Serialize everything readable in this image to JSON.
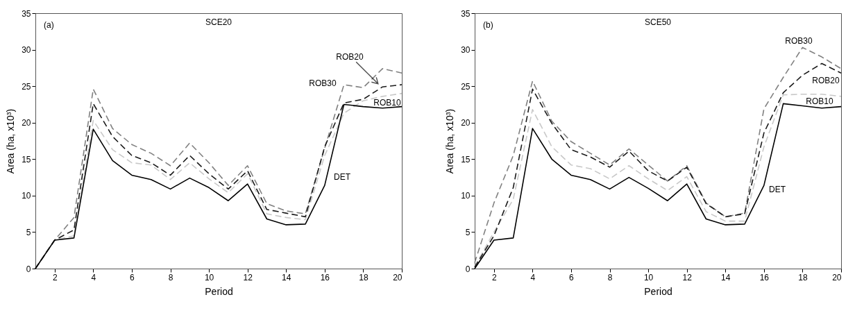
{
  "chart_data": [
    {
      "type": "line",
      "title": "SCE20",
      "xlabel": "Period",
      "ylabel": "Area (ha, x10³)",
      "xlim": [
        1,
        20
      ],
      "xticks": [
        2,
        4,
        6,
        8,
        10,
        12,
        14,
        16,
        18,
        20
      ],
      "ylim": [
        0,
        35
      ],
      "yticks": [
        0,
        5,
        10,
        15,
        20,
        25,
        30,
        35
      ],
      "grid": false,
      "marker": "none",
      "x": [
        1,
        2,
        3,
        4,
        5,
        6,
        7,
        8,
        9,
        10,
        11,
        12,
        13,
        14,
        15,
        16,
        17,
        18,
        19,
        20
      ],
      "series": [
        {
          "name": "ROB10",
          "color": "#c8c8c8",
          "line_style": "dashed",
          "values": [
            0,
            3.9,
            4.5,
            20.3,
            16.3,
            14.5,
            14.2,
            12.2,
            14.5,
            12.3,
            10.4,
            13.0,
            7.5,
            7.0,
            6.7,
            15.5,
            21.3,
            23.0,
            23.6,
            24.0
          ]
        },
        {
          "name": "ROB30",
          "color": "#808080",
          "line_style": "dashed",
          "values": [
            0,
            3.9,
            7.0,
            24.6,
            19.2,
            17.0,
            15.8,
            14.1,
            17.2,
            14.5,
            11.4,
            14.1,
            8.9,
            7.9,
            7.5,
            16.5,
            25.2,
            24.8,
            27.4,
            26.8
          ]
        },
        {
          "name": "ROB20",
          "color": "#1a1a1a",
          "line_style": "dashed",
          "values": [
            0,
            3.9,
            5.3,
            22.6,
            18.1,
            15.5,
            14.5,
            12.8,
            15.5,
            13.0,
            10.9,
            13.4,
            8.1,
            7.6,
            7.1,
            16.7,
            22.7,
            23.2,
            24.9,
            25.2
          ]
        },
        {
          "name": "DET",
          "color": "#000000",
          "line_style": "solid",
          "values": [
            0,
            3.9,
            4.2,
            19.1,
            14.8,
            12.8,
            12.2,
            10.9,
            12.4,
            11.1,
            9.3,
            11.6,
            6.8,
            6.0,
            6.1,
            11.4,
            22.5,
            22.2,
            22.0,
            22.2
          ]
        }
      ],
      "annotations": [
        "(a)"
      ]
    },
    {
      "type": "line",
      "title": "SCE50",
      "xlabel": "Period",
      "ylabel": "Area (ha, x10³)",
      "xlim": [
        1,
        20
      ],
      "xticks": [
        2,
        4,
        6,
        8,
        10,
        12,
        14,
        16,
        18,
        20
      ],
      "ylim": [
        0,
        35
      ],
      "yticks": [
        0,
        5,
        10,
        15,
        20,
        25,
        30,
        35
      ],
      "grid": false,
      "marker": "none",
      "x": [
        1,
        2,
        3,
        4,
        5,
        6,
        7,
        8,
        9,
        10,
        11,
        12,
        13,
        14,
        15,
        16,
        17,
        18,
        19,
        20
      ],
      "series": [
        {
          "name": "ROB10",
          "color": "#c8c8c8",
          "line_style": "dashed",
          "values": [
            0.3,
            5.0,
            9.5,
            21.8,
            16.7,
            14.2,
            13.7,
            12.3,
            14.1,
            12.3,
            10.7,
            12.6,
            7.8,
            6.5,
            6.5,
            16.7,
            23.8,
            23.9,
            23.9,
            23.6
          ]
        },
        {
          "name": "ROB30",
          "color": "#808080",
          "line_style": "dashed",
          "values": [
            0.8,
            9.0,
            15.5,
            25.7,
            20.2,
            17.4,
            15.8,
            14.2,
            16.4,
            14.2,
            12.0,
            14.1,
            9.0,
            7.1,
            7.6,
            21.9,
            26.2,
            30.3,
            29.0,
            27.4
          ]
        },
        {
          "name": "ROB20",
          "color": "#1a1a1a",
          "line_style": "dashed",
          "values": [
            0.2,
            4.5,
            11.1,
            24.6,
            19.9,
            16.3,
            15.3,
            13.9,
            16.1,
            13.4,
            12.0,
            13.9,
            8.9,
            7.1,
            7.5,
            18.6,
            24.1,
            26.5,
            28.1,
            26.8
          ]
        },
        {
          "name": "DET",
          "color": "#000000",
          "line_style": "solid",
          "values": [
            0,
            3.9,
            4.2,
            19.2,
            15.0,
            12.8,
            12.2,
            10.9,
            12.5,
            11.0,
            9.3,
            11.6,
            6.8,
            6.0,
            6.1,
            11.4,
            22.6,
            22.3,
            22.0,
            22.2
          ]
        }
      ],
      "annotations": [
        "(b)"
      ]
    }
  ]
}
